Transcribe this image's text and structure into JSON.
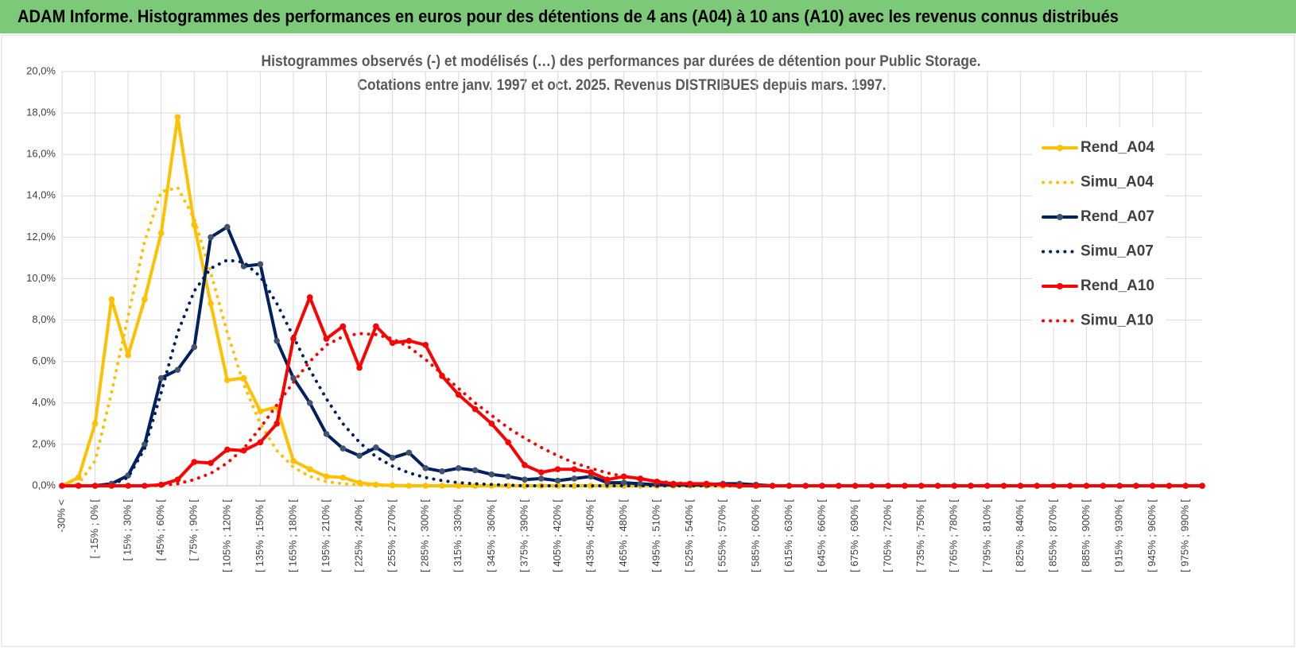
{
  "header": {
    "title": "ADAM Informe. Histogrammes des performances en euros pour des détentions de 4 ans (A04) à 10 ans (A10) avec les revenus connus distribués"
  },
  "chart_data": {
    "type": "line",
    "title": "Histogrammes observés (-) et modélisés (…) des performances par durées de détention pour Public Storage.",
    "subtitle": "Cotations entre janv. 1997 et oct. 2025.  Revenus DISTRIBUES depuis mars. 1997.",
    "categories": [
      "-30% <",
      null,
      "[ -15% ; 0% [",
      null,
      "[ 15% ; 30% [",
      null,
      "[ 45% ; 60% [",
      null,
      "[ 75% ; 90% [",
      null,
      "[ 105% ; 120% [",
      null,
      "[ 135% ; 150% [",
      null,
      "[ 165% ; 180% [",
      null,
      "[ 195% ; 210% [",
      null,
      "[ 225% ; 240% [",
      null,
      "[ 255% ; 270% [",
      null,
      "[ 285% ; 300% [",
      null,
      "[ 315% ; 330% [",
      null,
      "[ 345% ; 360% [",
      null,
      "[ 375% ; 390% [",
      null,
      "[ 405% ; 420% [",
      null,
      "[ 435% ; 450% [",
      null,
      "[ 465% ; 480% [",
      null,
      "[ 495% ; 510% [",
      null,
      "[ 525% ; 540% [",
      null,
      "[ 555% ; 570% [",
      null,
      "[ 585% ; 600% [",
      null,
      "[ 615% ; 630% [",
      null,
      "[ 645% ; 660% [",
      null,
      "[ 675% ; 690% [",
      null,
      "[ 705% ; 720% [",
      null,
      "[ 735% ; 750% [",
      null,
      "[ 765% ; 780% [",
      null,
      "[ 795% ; 810% [",
      null,
      "[ 825% ; 840% [",
      null,
      "[ 855% ; 870% [",
      null,
      "[ 885% ; 900% [",
      null,
      "[ 915% ; 930% [",
      null,
      "[ 945% ; 960% [",
      null,
      "[ 975% ; 990% [",
      null
    ],
    "ylim": [
      0,
      20
    ],
    "yticks": [
      {
        "value": 0,
        "label": "0,0%"
      },
      {
        "value": 2,
        "label": "2,0%"
      },
      {
        "value": 4,
        "label": "4,0%"
      },
      {
        "value": 6,
        "label": "6,0%"
      },
      {
        "value": 8,
        "label": "8,0%"
      },
      {
        "value": 10,
        "label": "10,0%"
      },
      {
        "value": 12,
        "label": "12,0%"
      },
      {
        "value": 14,
        "label": "14,0%"
      },
      {
        "value": 16,
        "label": "16,0%"
      },
      {
        "value": 18,
        "label": "18,0%"
      },
      {
        "value": 20,
        "label": "20,0%"
      }
    ],
    "grid": true,
    "legend": "right",
    "series": [
      {
        "name": "Rend_A04",
        "color": "#FFC000",
        "dash": false,
        "markers": true,
        "values": [
          0,
          0.4,
          3.0,
          9.0,
          6.3,
          9.0,
          12.2,
          17.8,
          12.6,
          8.8,
          5.1,
          5.2,
          3.6,
          3.8,
          1.2,
          0.8,
          0.45,
          0.4,
          0.15,
          0.05,
          0.02,
          0,
          0,
          0,
          0,
          0,
          0,
          0,
          0,
          0,
          0,
          0,
          0,
          0,
          0,
          0,
          0,
          0,
          0,
          0,
          0,
          0,
          0,
          0,
          0,
          0,
          0,
          0,
          0,
          0,
          0,
          0,
          0,
          0,
          0,
          0,
          0,
          0,
          0,
          0,
          0,
          0,
          0,
          0,
          0,
          0,
          0,
          0,
          0,
          0
        ]
      },
      {
        "name": "Simu_A04",
        "color": "#FFC000",
        "dash": true,
        "markers": false,
        "values": [
          0,
          0.1,
          1.2,
          4.5,
          8.2,
          11.8,
          14.2,
          14.4,
          12.9,
          10.3,
          7.4,
          4.9,
          3.0,
          1.7,
          0.9,
          0.45,
          0.2,
          0.1,
          0.04,
          0.02,
          0,
          0,
          0,
          0,
          0,
          0,
          0,
          0,
          0,
          0,
          0,
          0,
          0,
          0,
          0,
          0,
          0,
          0,
          0,
          0,
          0,
          0,
          0,
          0,
          0,
          0,
          0,
          0,
          0,
          0,
          0,
          0,
          0,
          0,
          0,
          0,
          0,
          0,
          0,
          0,
          0,
          0,
          0,
          0,
          0,
          0,
          0,
          0,
          0,
          0
        ]
      },
      {
        "name": "Rend_A07",
        "color": "#002060",
        "dash": false,
        "markers": true,
        "values": [
          0,
          0,
          0,
          0.1,
          0.5,
          2.0,
          5.2,
          5.6,
          6.7,
          12.0,
          12.5,
          10.6,
          10.7,
          7.0,
          5.2,
          4.0,
          2.5,
          1.8,
          1.45,
          1.85,
          1.35,
          1.6,
          0.85,
          0.7,
          0.85,
          0.75,
          0.55,
          0.45,
          0.3,
          0.35,
          0.25,
          0.35,
          0.45,
          0.15,
          0.15,
          0.1,
          0.05,
          0.05,
          0.05,
          0.05,
          0.1,
          0.1,
          0.05,
          0,
          0,
          0,
          0,
          0,
          0,
          0,
          0,
          0,
          0,
          0,
          0,
          0,
          0,
          0,
          0,
          0,
          0,
          0,
          0,
          0,
          0,
          0,
          0,
          0,
          0,
          0
        ]
      },
      {
        "name": "Simu_A07",
        "color": "#002060",
        "dash": true,
        "markers": false,
        "values": [
          0,
          0,
          0,
          0.05,
          0.4,
          1.8,
          4.5,
          7.4,
          9.4,
          10.5,
          10.9,
          10.8,
          10.1,
          8.8,
          7.2,
          5.6,
          4.2,
          3.0,
          2.1,
          1.4,
          0.95,
          0.62,
          0.4,
          0.25,
          0.15,
          0.1,
          0.06,
          0.03,
          0,
          0,
          0,
          0,
          0,
          0,
          0,
          0,
          0,
          0,
          0,
          0,
          0,
          0,
          0,
          0,
          0,
          0,
          0,
          0,
          0,
          0,
          0,
          0,
          0,
          0,
          0,
          0,
          0,
          0,
          0,
          0,
          0,
          0,
          0,
          0,
          0,
          0,
          0,
          0,
          0,
          0
        ]
      },
      {
        "name": "Rend_A10",
        "color": "#FF0000",
        "dash": false,
        "markers": true,
        "values": [
          0,
          0,
          0,
          0,
          0,
          0,
          0.05,
          0.3,
          1.15,
          1.1,
          1.75,
          1.7,
          2.1,
          3.0,
          7.1,
          9.1,
          7.1,
          7.7,
          5.7,
          7.7,
          6.9,
          7.0,
          6.8,
          5.3,
          4.4,
          3.7,
          3.0,
          2.1,
          1.0,
          0.65,
          0.8,
          0.8,
          0.65,
          0.3,
          0.45,
          0.35,
          0.2,
          0.1,
          0.1,
          0.1,
          0.05,
          0,
          0,
          0,
          0,
          0,
          0,
          0,
          0,
          0,
          0,
          0,
          0,
          0,
          0,
          0,
          0,
          0,
          0,
          0,
          0,
          0,
          0,
          0,
          0,
          0,
          0,
          0,
          0,
          0
        ]
      },
      {
        "name": "Simu_A10",
        "color": "#FF0000",
        "dash": true,
        "markers": false,
        "values": [
          0,
          0,
          0,
          0,
          0,
          0,
          0.02,
          0.1,
          0.3,
          0.6,
          1.1,
          1.8,
          2.8,
          3.9,
          5.0,
          6.0,
          6.8,
          7.2,
          7.35,
          7.3,
          7.1,
          6.7,
          6.1,
          5.4,
          4.7,
          4.0,
          3.4,
          2.8,
          2.3,
          1.85,
          1.45,
          1.1,
          0.85,
          0.62,
          0.45,
          0.33,
          0.22,
          0.15,
          0.1,
          0.06,
          0.04,
          0.02,
          0,
          0,
          0,
          0,
          0,
          0,
          0,
          0,
          0,
          0,
          0,
          0,
          0,
          0,
          0,
          0,
          0,
          0,
          0,
          0,
          0,
          0,
          0,
          0,
          0,
          0,
          0,
          0
        ]
      }
    ]
  }
}
